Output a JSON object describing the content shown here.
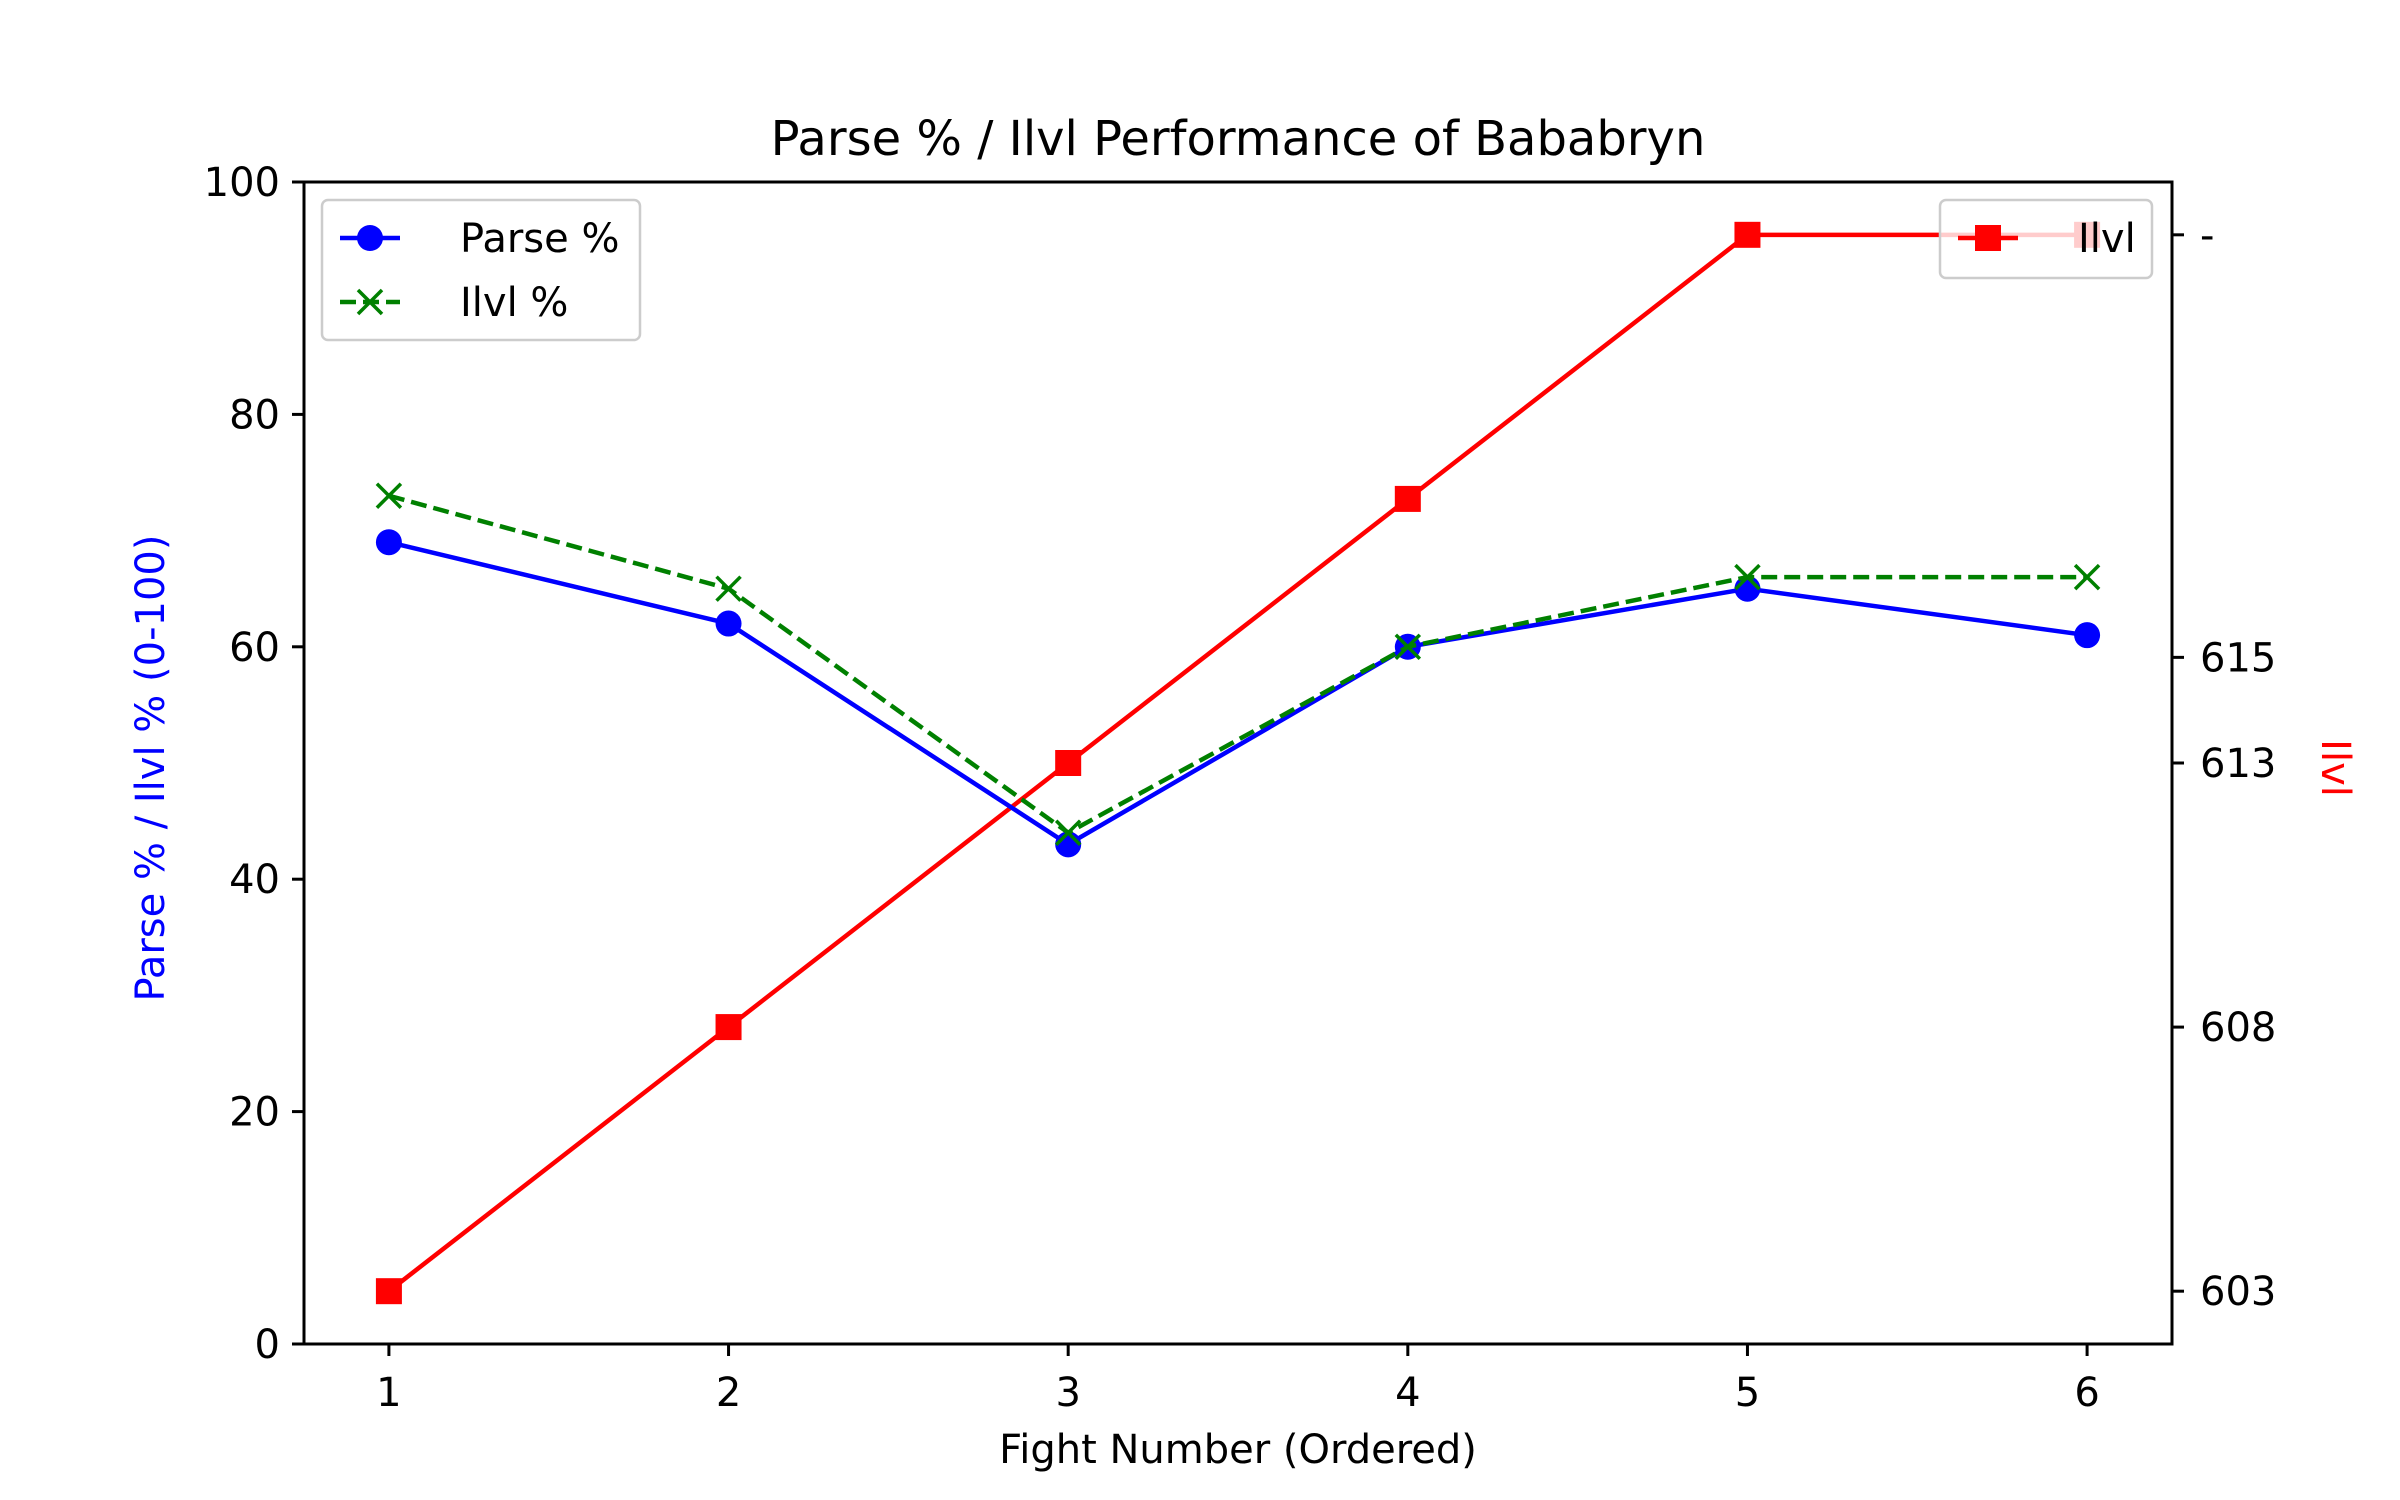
{
  "chart_data": {
    "type": "line",
    "title": "Parse % / Ilvl Performance of Bababryn",
    "xlabel": "Fight Number (Ordered)",
    "ylabel": "Parse % / Ilvl % (0-100)",
    "ylabel_right": "Ilvl",
    "x": [
      1,
      2,
      3,
      4,
      5,
      6
    ],
    "x_tick_labels": [
      "1",
      "2",
      "3",
      "4",
      "5",
      "6"
    ],
    "xlim": [
      0.75,
      6.25
    ],
    "ylim": [
      0,
      100
    ],
    "y_ticks": [
      0,
      20,
      40,
      60,
      80,
      100
    ],
    "y_tick_labels": [
      "0",
      "20",
      "40",
      "60",
      "80",
      "100"
    ],
    "ylim_right": [
      602,
      624
    ],
    "y_ticks_right": [
      603,
      608,
      613,
      615,
      623
    ],
    "y_tick_labels_right": [
      "603",
      "608",
      "613",
      "615",
      "-"
    ],
    "grid": false,
    "series": [
      {
        "name": "Parse %",
        "axis": "left",
        "color": "#0000ff",
        "line_style": "solid",
        "marker": "circle",
        "values": [
          69,
          62,
          43,
          60,
          65,
          61
        ]
      },
      {
        "name": "Ilvl %",
        "axis": "left",
        "color": "#008000",
        "line_style": "dashed",
        "marker": "x",
        "values": [
          73,
          65,
          44,
          60,
          66,
          66
        ]
      },
      {
        "name": "Ilvl",
        "axis": "right",
        "color": "#ff0000",
        "line_style": "solid",
        "marker": "square",
        "values": [
          603,
          608,
          613,
          618,
          623,
          623
        ]
      }
    ],
    "legends": [
      {
        "placement": "upper-left",
        "entries": [
          "Parse %",
          "Ilvl %"
        ]
      },
      {
        "placement": "upper-right",
        "entries": [
          "Ilvl"
        ]
      }
    ],
    "colors": {
      "left_axis_label": "#0000ff",
      "right_axis_label": "#ff0000"
    }
  }
}
